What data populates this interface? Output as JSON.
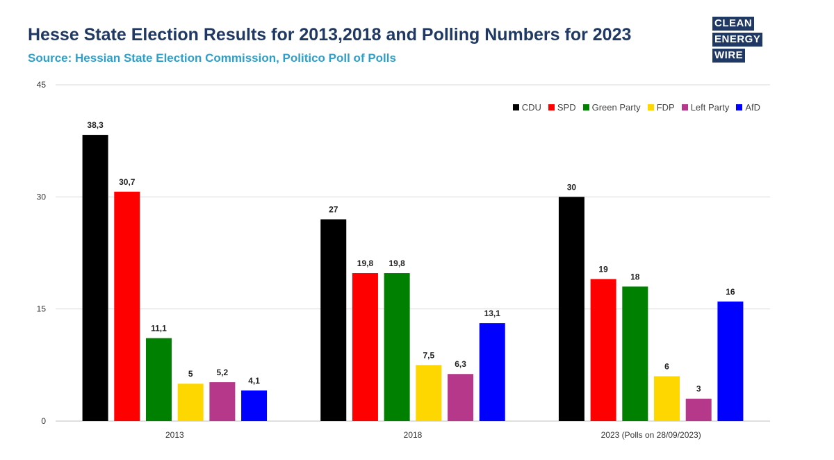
{
  "header": {
    "title": "Hesse State Election Results for 2013,2018 and Polling Numbers for 2023",
    "subtitle": "Source: Hessian State Election Commission, Politico Poll of Polls"
  },
  "logo": {
    "lines": [
      "CLEAN",
      "ENERGY",
      "WIRE"
    ]
  },
  "chart_data": {
    "type": "bar",
    "title": "Hesse State Election Results for 2013,2018 and Polling Numbers for 2023",
    "subtitle": "Source: Hessian State Election Commission, Politico Poll of Polls",
    "categories": [
      "2013",
      "2018",
      "2023 (Polls on 28/09/2023)"
    ],
    "series": [
      {
        "name": "CDU",
        "color": "#000000",
        "values": [
          38.3,
          27,
          30
        ],
        "labels": [
          "38,3",
          "27",
          "30"
        ]
      },
      {
        "name": "SPD",
        "color": "#ff0000",
        "values": [
          30.7,
          19.8,
          19
        ],
        "labels": [
          "30,7",
          "19,8",
          "19"
        ]
      },
      {
        "name": "Green Party",
        "color": "#008000",
        "values": [
          11.1,
          19.8,
          18
        ],
        "labels": [
          "11,1",
          "19,8",
          "18"
        ]
      },
      {
        "name": "FDP",
        "color": "#ffd700",
        "values": [
          5,
          7.5,
          6
        ],
        "labels": [
          "5",
          "7,5",
          "6"
        ]
      },
      {
        "name": "Left Party",
        "color": "#b5388a",
        "values": [
          5.2,
          6.3,
          3
        ],
        "labels": [
          "5,2",
          "6,3",
          "3"
        ]
      },
      {
        "name": "AfD",
        "color": "#0000ff",
        "values": [
          4.1,
          13.1,
          16
        ],
        "labels": [
          "4,1",
          "13,1",
          "16"
        ]
      }
    ],
    "ylim": [
      0,
      45
    ],
    "yticks": [
      "0",
      "15",
      "30",
      "45"
    ],
    "grid": true,
    "legend_position": "top-right"
  }
}
